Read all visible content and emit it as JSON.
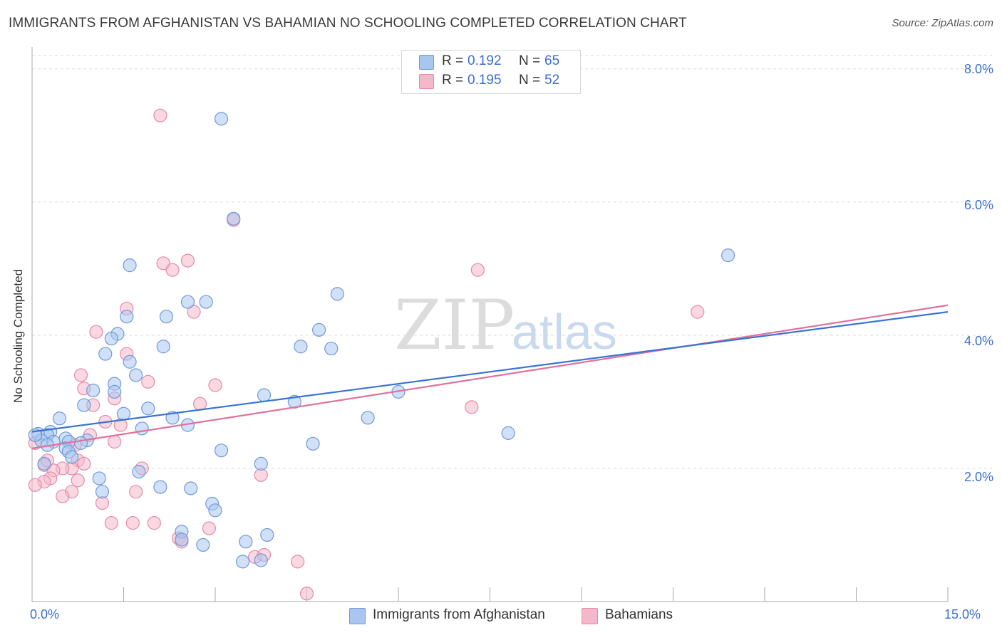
{
  "title": "IMMIGRANTS FROM AFGHANISTAN VS BAHAMIAN NO SCHOOLING COMPLETED CORRELATION CHART",
  "source": "Source: ZipAtlas.com",
  "watermark": {
    "zip": "ZIP",
    "atlas": "atlas"
  },
  "colors": {
    "blue_fill": "#a9c6f0",
    "blue_stroke": "#6f9ad9",
    "blue_line": "#3874d6",
    "pink_fill": "#f5b8cb",
    "pink_stroke": "#e48aa8",
    "pink_line": "#e0719b",
    "grid": "#d9d9d9",
    "axis": "#aaaaaa",
    "tick_text": "#3b6fd1"
  },
  "legend_top": [
    {
      "r_label": "R =",
      "r_value": "0.192",
      "n_label": "N =",
      "n_value": "65"
    },
    {
      "r_label": "R =",
      "r_value": "0.195",
      "n_label": "N =",
      "n_value": "52"
    }
  ],
  "legend_bottom": [
    "Immigrants from Afghanistan",
    "Bahamians"
  ],
  "x_tick_labels": {
    "min": "0.0%",
    "max": "15.0%"
  },
  "y_tick_labels": [
    "2.0%",
    "4.0%",
    "6.0%",
    "8.0%"
  ],
  "chart_data": {
    "type": "scatter",
    "title": "IMMIGRANTS FROM AFGHANISTAN VS BAHAMIAN NO SCHOOLING COMPLETED CORRELATION CHART",
    "xlabel": "",
    "ylabel": "No Schooling Completed",
    "xlim": [
      0,
      15
    ],
    "ylim": [
      0,
      8.2
    ],
    "x_ticks": [
      0,
      1.5,
      3,
      4.5,
      6,
      7.5,
      9,
      10.5,
      12,
      13.5,
      15
    ],
    "y_ticks": [
      2,
      4,
      6,
      8
    ],
    "grid": "horizontal-dashed",
    "legend_position": "top-center",
    "series": [
      {
        "name": "Immigrants from Afghanistan",
        "R": 0.192,
        "N": 65,
        "trend": {
          "x0": 0,
          "y0": 2.55,
          "x1": 15,
          "y1": 4.35
        },
        "points": [
          [
            3.1,
            7.25
          ],
          [
            3.3,
            5.75
          ],
          [
            11.4,
            5.2
          ],
          [
            1.6,
            5.05
          ],
          [
            2.85,
            4.5
          ],
          [
            2.55,
            4.5
          ],
          [
            5.0,
            4.62
          ],
          [
            1.55,
            4.28
          ],
          [
            2.2,
            4.28
          ],
          [
            4.7,
            4.08
          ],
          [
            1.4,
            4.02
          ],
          [
            1.3,
            3.95
          ],
          [
            2.15,
            3.83
          ],
          [
            4.4,
            3.83
          ],
          [
            4.9,
            3.8
          ],
          [
            1.2,
            3.72
          ],
          [
            1.6,
            3.6
          ],
          [
            1.7,
            3.4
          ],
          [
            1.35,
            3.27
          ],
          [
            1.0,
            3.17
          ],
          [
            1.35,
            3.15
          ],
          [
            6.0,
            3.15
          ],
          [
            3.8,
            3.1
          ],
          [
            4.3,
            3.0
          ],
          [
            0.85,
            2.95
          ],
          [
            1.9,
            2.9
          ],
          [
            1.5,
            2.82
          ],
          [
            0.45,
            2.75
          ],
          [
            2.3,
            2.76
          ],
          [
            5.5,
            2.76
          ],
          [
            2.55,
            2.65
          ],
          [
            1.8,
            2.6
          ],
          [
            0.3,
            2.55
          ],
          [
            0.1,
            2.52
          ],
          [
            7.8,
            2.53
          ],
          [
            0.25,
            2.5
          ],
          [
            0.55,
            2.45
          ],
          [
            0.15,
            2.42
          ],
          [
            0.9,
            2.42
          ],
          [
            0.35,
            2.4
          ],
          [
            0.8,
            2.38
          ],
          [
            0.6,
            2.4
          ],
          [
            4.6,
            2.37
          ],
          [
            0.25,
            2.35
          ],
          [
            0.55,
            2.3
          ],
          [
            0.6,
            2.25
          ],
          [
            3.1,
            2.27
          ],
          [
            0.65,
            2.17
          ],
          [
            0.2,
            2.07
          ],
          [
            3.75,
            2.07
          ],
          [
            1.75,
            1.95
          ],
          [
            1.1,
            1.85
          ],
          [
            2.1,
            1.72
          ],
          [
            2.6,
            1.7
          ],
          [
            1.15,
            1.65
          ],
          [
            2.95,
            1.47
          ],
          [
            3.0,
            1.37
          ],
          [
            2.45,
            1.05
          ],
          [
            3.85,
            1.0
          ],
          [
            2.45,
            0.93
          ],
          [
            2.8,
            0.85
          ],
          [
            3.5,
            0.9
          ],
          [
            3.45,
            0.6
          ],
          [
            3.75,
            0.62
          ],
          [
            0.05,
            2.5
          ]
        ]
      },
      {
        "name": "Bahamians",
        "R": 0.195,
        "N": 52,
        "trend": {
          "x0": 0,
          "y0": 2.3,
          "x1": 15,
          "y1": 4.45
        },
        "points": [
          [
            2.1,
            7.3
          ],
          [
            3.3,
            5.73
          ],
          [
            2.55,
            5.12
          ],
          [
            2.15,
            5.08
          ],
          [
            2.3,
            4.98
          ],
          [
            7.3,
            4.98
          ],
          [
            10.9,
            4.35
          ],
          [
            1.55,
            4.4
          ],
          [
            2.65,
            4.35
          ],
          [
            1.05,
            4.05
          ],
          [
            1.55,
            3.72
          ],
          [
            0.8,
            3.4
          ],
          [
            1.9,
            3.3
          ],
          [
            3.0,
            3.25
          ],
          [
            0.85,
            3.2
          ],
          [
            1.35,
            3.05
          ],
          [
            2.75,
            2.97
          ],
          [
            1.0,
            2.95
          ],
          [
            7.2,
            2.92
          ],
          [
            1.2,
            2.7
          ],
          [
            1.45,
            2.65
          ],
          [
            0.95,
            2.5
          ],
          [
            1.35,
            2.4
          ],
          [
            0.7,
            2.35
          ],
          [
            0.05,
            2.38
          ],
          [
            0.75,
            2.12
          ],
          [
            0.85,
            2.07
          ],
          [
            0.2,
            2.05
          ],
          [
            0.65,
            2.0
          ],
          [
            1.8,
            2.0
          ],
          [
            0.5,
            2.0
          ],
          [
            0.35,
            1.97
          ],
          [
            0.3,
            1.85
          ],
          [
            3.75,
            1.9
          ],
          [
            0.75,
            1.82
          ],
          [
            0.2,
            1.8
          ],
          [
            0.05,
            1.75
          ],
          [
            0.65,
            1.65
          ],
          [
            1.7,
            1.65
          ],
          [
            0.5,
            1.58
          ],
          [
            1.15,
            1.48
          ],
          [
            1.3,
            1.18
          ],
          [
            1.65,
            1.18
          ],
          [
            2.0,
            1.18
          ],
          [
            2.9,
            1.1
          ],
          [
            2.4,
            0.95
          ],
          [
            2.45,
            0.9
          ],
          [
            3.65,
            0.67
          ],
          [
            3.8,
            0.7
          ],
          [
            4.35,
            0.6
          ],
          [
            4.5,
            0.12
          ],
          [
            0.25,
            2.12
          ]
        ]
      }
    ]
  }
}
